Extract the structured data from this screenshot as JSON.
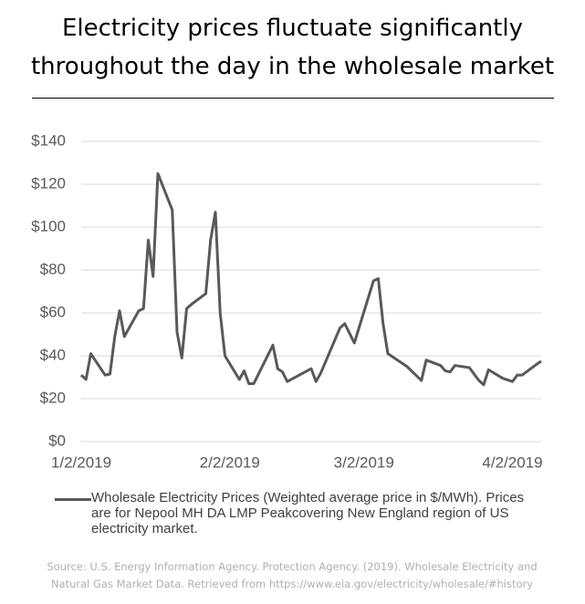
{
  "chart_data": {
    "type": "line",
    "title": "Electricity prices fluctuate significantly throughout the day in the wholesale market",
    "x": [
      "2019-01-02",
      "2019-01-03",
      "2019-01-04",
      "2019-01-07",
      "2019-01-08",
      "2019-01-09",
      "2019-01-10",
      "2019-01-11",
      "2019-01-14",
      "2019-01-15",
      "2019-01-16",
      "2019-01-17",
      "2019-01-18",
      "2019-01-21",
      "2019-01-22",
      "2019-01-23",
      "2019-01-24",
      "2019-01-25",
      "2019-01-28",
      "2019-01-29",
      "2019-01-30",
      "2019-01-31",
      "2019-02-01",
      "2019-02-04",
      "2019-02-05",
      "2019-02-06",
      "2019-02-07",
      "2019-02-11",
      "2019-02-12",
      "2019-02-13",
      "2019-02-14",
      "2019-02-19",
      "2019-02-20",
      "2019-02-21",
      "2019-02-25",
      "2019-02-26",
      "2019-02-28",
      "2019-03-04",
      "2019-03-05",
      "2019-03-06",
      "2019-03-07",
      "2019-03-11",
      "2019-03-14",
      "2019-03-15",
      "2019-03-18",
      "2019-03-19",
      "2019-03-20",
      "2019-03-21",
      "2019-03-24",
      "2019-03-26",
      "2019-03-27",
      "2019-03-28",
      "2019-03-31",
      "2019-04-02",
      "2019-04-03",
      "2019-04-04",
      "2019-04-07",
      "2019-04-08"
    ],
    "series": [
      {
        "name": "Wholesale Electricity Prices (Weighted average price in $/MWh). Prices are for Nepool MH DA LMP Peakcovering New England region of US electricity market.",
        "color": "#595959",
        "values": [
          31,
          29,
          41,
          31,
          31.5,
          49,
          61,
          49,
          61,
          62,
          94,
          77,
          125,
          108,
          51,
          39,
          62,
          64,
          69,
          94,
          107,
          60,
          40,
          29,
          33,
          27,
          27,
          45,
          34,
          32.5,
          28,
          34,
          28,
          32,
          53,
          55,
          46,
          75,
          76,
          55,
          41,
          35,
          28.5,
          38,
          35.5,
          33,
          32.5,
          35.5,
          34.5,
          28.5,
          26.5,
          33.5,
          29.5,
          28,
          31,
          31,
          36,
          37.5
        ]
      }
    ],
    "xlim": [
      "2019-01-02",
      "2019-04-08"
    ],
    "xticks": [
      {
        "value": "2019-01-02",
        "label": "1/2/2019"
      },
      {
        "value": "2019-02-02",
        "label": "2/2/2019"
      },
      {
        "value": "2019-03-02",
        "label": "3/2/2019"
      },
      {
        "value": "2019-04-02",
        "label": "4/2/2019"
      }
    ],
    "ylim": [
      0,
      140
    ],
    "yticks": [
      {
        "value": 0,
        "label": "$0"
      },
      {
        "value": 20,
        "label": "$20"
      },
      {
        "value": 40,
        "label": "$40"
      },
      {
        "value": 60,
        "label": "$60"
      },
      {
        "value": 80,
        "label": "$80"
      },
      {
        "value": 100,
        "label": "$100"
      },
      {
        "value": 120,
        "label": "$120"
      },
      {
        "value": 140,
        "label": "$140"
      }
    ],
    "grid": true,
    "source": "Source: U.S. Energy Information Agency.  Protection Agency. (2019). Wholesale Electricity and Natural Gas Market Data. Retrieved from https://www.eia.gov/electricity/wholesale/#history"
  }
}
